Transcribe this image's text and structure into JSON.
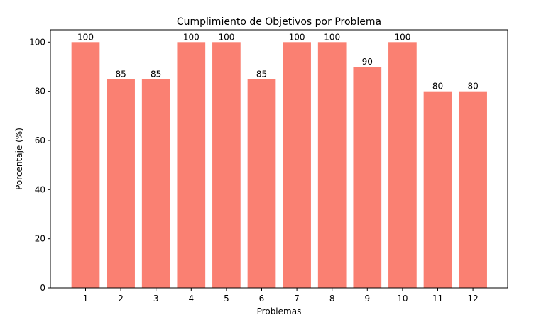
{
  "chart_data": {
    "type": "bar",
    "title": "Cumplimiento de Objetivos por Problema",
    "xlabel": "Problemas",
    "ylabel": "Porcentaje (%)",
    "categories": [
      "1",
      "2",
      "3",
      "4",
      "5",
      "6",
      "7",
      "8",
      "9",
      "10",
      "11",
      "12"
    ],
    "values": [
      100,
      85,
      85,
      100,
      100,
      85,
      100,
      100,
      90,
      100,
      80,
      80
    ],
    "data_labels": [
      "100",
      "85",
      "85",
      "100",
      "100",
      "85",
      "100",
      "100",
      "90",
      "100",
      "80",
      "80"
    ],
    "ylim": [
      0,
      105
    ],
    "yticks": [
      0,
      20,
      40,
      60,
      80,
      100
    ],
    "ytick_labels": [
      "0",
      "20",
      "40",
      "60",
      "80",
      "100"
    ],
    "grid": false,
    "bar_color": "#fa8072"
  }
}
